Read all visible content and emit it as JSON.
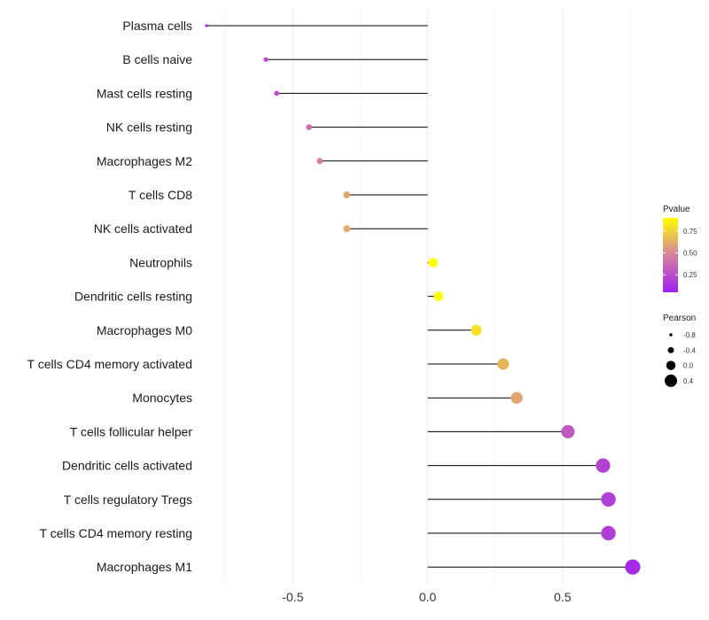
{
  "chart_data": {
    "type": "lollipop",
    "title": "",
    "xlabel": "",
    "ylabel": "",
    "xlim": [
      -0.83,
      0.78
    ],
    "x_ticks": [
      {
        "value": -0.5,
        "label": "-0.5"
      },
      {
        "value": 0.0,
        "label": "0.0"
      },
      {
        "value": 0.5,
        "label": "0.5"
      }
    ],
    "grid": true,
    "colors": {
      "low": "#a020f0",
      "mid": "#d5819f",
      "high": "#ffff00",
      "stem": "#000000",
      "grid": "#ebebeb"
    },
    "categories": [
      "Plasma cells",
      "B cells naive",
      "Mast cells resting",
      "NK cells resting",
      "Macrophages M2",
      "T cells CD8",
      "NK cells activated",
      "Neutrophils",
      "Dendritic cells resting",
      "Macrophages M0",
      "T cells CD4 memory activated",
      "Monocytes",
      "T cells follicular helper",
      "Dendritic cells activated",
      "T cells regulatory  Tregs",
      "T cells CD4 memory resting",
      "Macrophages M1"
    ],
    "pearson": [
      -0.82,
      -0.6,
      -0.56,
      -0.44,
      -0.4,
      -0.3,
      -0.3,
      0.02,
      0.04,
      0.18,
      0.28,
      0.33,
      0.52,
      0.65,
      0.67,
      0.67,
      0.76
    ],
    "pvalue": [
      0.05,
      0.22,
      0.25,
      0.4,
      0.46,
      0.6,
      0.62,
      0.94,
      0.92,
      0.8,
      0.65,
      0.6,
      0.3,
      0.2,
      0.18,
      0.18,
      0.1
    ],
    "legend": {
      "pvalue_title": "Pvalue",
      "pvalue_range": [
        0.05,
        0.9
      ],
      "pvalue_ticks": [
        {
          "value": 0.75,
          "label": "0.75"
        },
        {
          "value": 0.5,
          "label": "0.50"
        },
        {
          "value": 0.25,
          "label": "0.25"
        }
      ],
      "pearson_title": "Pearson",
      "pearson_entries": [
        {
          "value": -0.8,
          "label": "-0.8"
        },
        {
          "value": -0.4,
          "label": "-0.4"
        },
        {
          "value": 0.0,
          "label": "0.0"
        },
        {
          "value": 0.4,
          "label": "0.4"
        }
      ],
      "position": "right"
    }
  }
}
